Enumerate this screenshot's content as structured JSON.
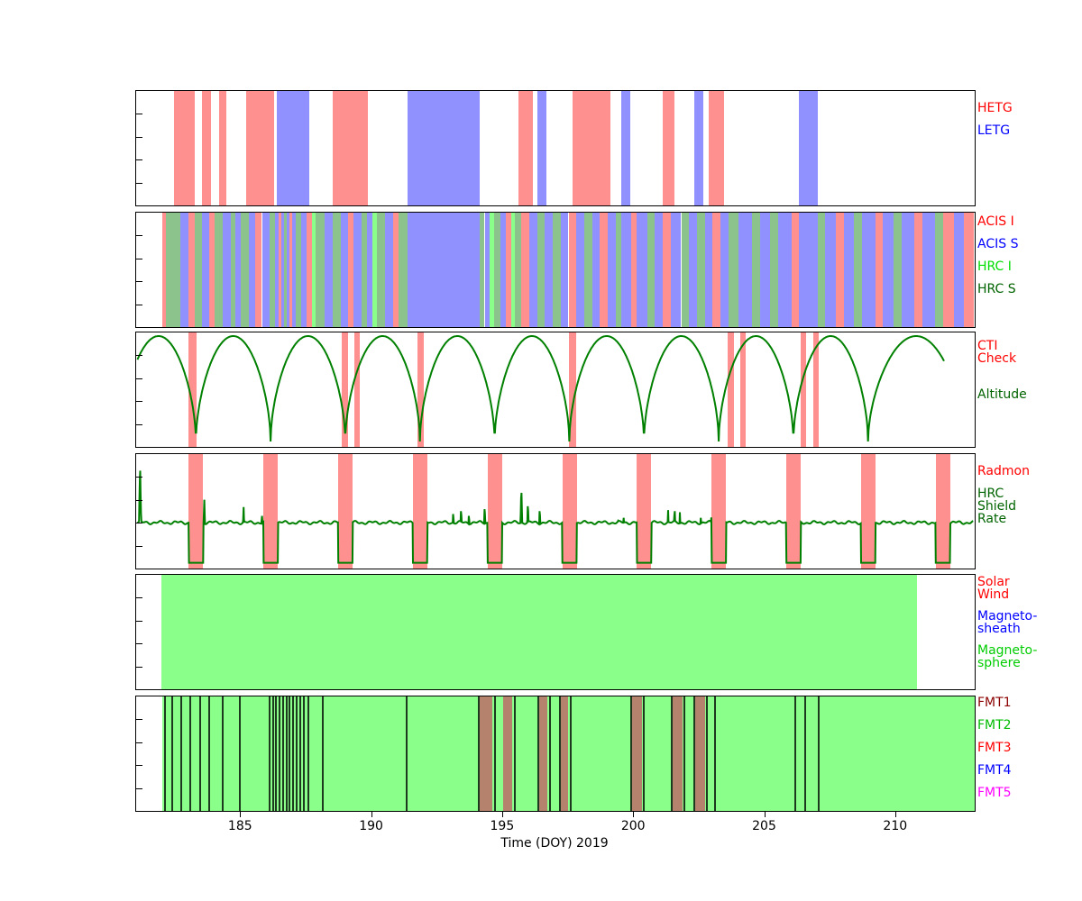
{
  "chart_data": {
    "type": "timeline",
    "title": "",
    "xaxis": {
      "label": "Time (DOY) 2019",
      "min": 181.0,
      "max": 213.0,
      "major_ticks": [
        185,
        190,
        195,
        200,
        205,
        210
      ]
    },
    "colors": {
      "salmon_band": "#ff9090",
      "blue_band": "#9090ff",
      "bright_green_band": "#8aff8a",
      "sage_band": "#8cc28c",
      "rosy_band": "#b5826e",
      "dark_line": "#1e3a1e",
      "curve_green": "#008000"
    },
    "panels": [
      {
        "id": "gratings",
        "kind": "intervals",
        "legend": [
          {
            "lines": [
              "HETG"
            ],
            "color": "#ff0000",
            "top": 13
          },
          {
            "lines": [
              "LETG"
            ],
            "color": "#0000ff",
            "top": 38
          }
        ],
        "bands": [
          {
            "series": "HETG",
            "color": "#ff9090",
            "intervals": [
              [
                182.45,
                183.25
              ],
              [
                183.5,
                183.85
              ],
              [
                184.15,
                184.45
              ],
              [
                185.2,
                186.25
              ],
              [
                188.5,
                189.85
              ],
              [
                195.6,
                196.15
              ],
              [
                197.65,
                199.1
              ],
              [
                201.1,
                201.55
              ],
              [
                202.85,
                203.45
              ]
            ]
          },
          {
            "series": "LETG",
            "color": "#9090ff",
            "intervals": [
              [
                186.35,
                187.6
              ],
              [
                191.35,
                194.1
              ],
              [
                196.3,
                196.65
              ],
              [
                199.5,
                199.85
              ],
              [
                202.3,
                202.65
              ],
              [
                206.3,
                207.0
              ]
            ]
          }
        ]
      },
      {
        "id": "instruments",
        "kind": "intervals",
        "legend": [
          {
            "lines": [
              "ACIS I"
            ],
            "color": "#ff0000",
            "top": 4
          },
          {
            "lines": [
              "ACIS S"
            ],
            "color": "#0000ff",
            "top": 29
          },
          {
            "lines": [
              "HRC I"
            ],
            "color": "#00dd00",
            "top": 54
          },
          {
            "lines": [
              "HRC S"
            ],
            "color": "#006400",
            "top": 79
          }
        ],
        "series_names": {
          "I": "ACIS I",
          "S": "ACIS S",
          "h": "HRC I",
          "H": "HRC S"
        },
        "series_colors": {
          "I": "#ff9090",
          "S": "#9090ff",
          "h": "#8aff8a",
          "H": "#8cc28c"
        },
        "segments": [
          [
            182.0,
            182.15,
            "I"
          ],
          [
            182.15,
            182.7,
            "H"
          ],
          [
            182.7,
            183.0,
            "S"
          ],
          [
            183.0,
            183.25,
            "I"
          ],
          [
            183.25,
            183.5,
            "H"
          ],
          [
            183.5,
            183.8,
            "S"
          ],
          [
            183.8,
            184.0,
            "I"
          ],
          [
            184.0,
            184.3,
            "H"
          ],
          [
            184.3,
            184.6,
            "S"
          ],
          [
            184.6,
            184.8,
            "H"
          ],
          [
            184.8,
            185.0,
            "S"
          ],
          [
            185.0,
            185.3,
            "H"
          ],
          [
            185.3,
            185.55,
            "S"
          ],
          [
            185.55,
            185.8,
            "I"
          ],
          [
            185.8,
            186.1,
            "S"
          ],
          [
            186.1,
            186.3,
            "H"
          ],
          [
            186.3,
            186.45,
            "S"
          ],
          [
            186.45,
            186.55,
            "I"
          ],
          [
            186.55,
            186.65,
            "S"
          ],
          [
            186.65,
            186.75,
            "H"
          ],
          [
            186.75,
            186.85,
            "S"
          ],
          [
            186.85,
            186.95,
            "I"
          ],
          [
            186.95,
            187.1,
            "S"
          ],
          [
            187.1,
            187.3,
            "H"
          ],
          [
            187.3,
            187.5,
            "S"
          ],
          [
            187.5,
            187.7,
            "I"
          ],
          [
            187.7,
            187.85,
            "h"
          ],
          [
            187.85,
            188.2,
            "H"
          ],
          [
            188.2,
            188.5,
            "S"
          ],
          [
            188.5,
            188.8,
            "H"
          ],
          [
            188.8,
            189.1,
            "S"
          ],
          [
            189.1,
            189.3,
            "I"
          ],
          [
            189.3,
            189.6,
            "S"
          ],
          [
            189.6,
            189.8,
            "H"
          ],
          [
            189.8,
            190.0,
            "S"
          ],
          [
            190.0,
            190.2,
            "h"
          ],
          [
            190.2,
            190.5,
            "H"
          ],
          [
            190.5,
            190.8,
            "S"
          ],
          [
            190.8,
            191.0,
            "I"
          ],
          [
            191.0,
            191.35,
            "H"
          ],
          [
            191.35,
            194.1,
            "S"
          ],
          [
            194.1,
            194.3,
            "H"
          ],
          [
            194.3,
            194.5,
            "S"
          ],
          [
            194.5,
            194.65,
            "h"
          ],
          [
            194.65,
            194.9,
            "H"
          ],
          [
            194.9,
            195.1,
            "S"
          ],
          [
            195.1,
            195.3,
            "I"
          ],
          [
            195.3,
            195.45,
            "h"
          ],
          [
            195.45,
            195.7,
            "H"
          ],
          [
            195.7,
            196.0,
            "I"
          ],
          [
            196.0,
            196.3,
            "S"
          ],
          [
            196.3,
            196.6,
            "H"
          ],
          [
            196.6,
            196.9,
            "S"
          ],
          [
            196.9,
            197.2,
            "H"
          ],
          [
            197.2,
            197.5,
            "S"
          ],
          [
            197.5,
            197.8,
            "I"
          ],
          [
            197.8,
            198.1,
            "S"
          ],
          [
            198.1,
            198.4,
            "H"
          ],
          [
            198.4,
            198.7,
            "S"
          ],
          [
            198.7,
            199.0,
            "I"
          ],
          [
            199.0,
            199.3,
            "S"
          ],
          [
            199.3,
            199.5,
            "H"
          ],
          [
            199.5,
            199.9,
            "S"
          ],
          [
            199.9,
            200.1,
            "I"
          ],
          [
            200.1,
            200.5,
            "S"
          ],
          [
            200.5,
            200.8,
            "H"
          ],
          [
            200.8,
            201.1,
            "S"
          ],
          [
            201.1,
            201.4,
            "I"
          ],
          [
            201.4,
            201.8,
            "S"
          ],
          [
            201.8,
            202.1,
            "H"
          ],
          [
            202.1,
            202.4,
            "S"
          ],
          [
            202.4,
            202.7,
            "H"
          ],
          [
            202.7,
            203.0,
            "S"
          ],
          [
            203.0,
            203.3,
            "I"
          ],
          [
            203.3,
            203.6,
            "S"
          ],
          [
            203.6,
            204.0,
            "H"
          ],
          [
            204.0,
            204.5,
            "S"
          ],
          [
            204.5,
            204.8,
            "H"
          ],
          [
            204.8,
            205.2,
            "S"
          ],
          [
            205.2,
            205.5,
            "H"
          ],
          [
            205.5,
            206.0,
            "S"
          ],
          [
            206.0,
            206.3,
            "I"
          ],
          [
            206.3,
            207.0,
            "S"
          ],
          [
            207.0,
            207.3,
            "H"
          ],
          [
            207.3,
            207.7,
            "S"
          ],
          [
            207.7,
            208.0,
            "I"
          ],
          [
            208.0,
            208.4,
            "S"
          ],
          [
            208.4,
            208.7,
            "H"
          ],
          [
            208.7,
            209.2,
            "S"
          ],
          [
            209.2,
            209.5,
            "I"
          ],
          [
            209.5,
            209.9,
            "S"
          ],
          [
            209.9,
            210.2,
            "H"
          ],
          [
            210.2,
            210.7,
            "S"
          ],
          [
            210.7,
            211.0,
            "I"
          ],
          [
            211.0,
            211.5,
            "S"
          ],
          [
            211.5,
            211.8,
            "H"
          ],
          [
            211.8,
            212.2,
            "I"
          ],
          [
            212.2,
            212.6,
            "S"
          ],
          [
            212.6,
            212.95,
            "I"
          ]
        ]
      },
      {
        "id": "orbit",
        "kind": "line+intervals",
        "legend": [
          {
            "lines": [
              "CTI",
              "Check"
            ],
            "color": "#ff0000",
            "top": 9
          },
          {
            "lines": [
              "Altitude"
            ],
            "color": "#006400",
            "top": 63
          }
        ],
        "cti_bands": {
          "series": "CTI Check",
          "color": "#ff9090",
          "intervals": [
            [
              183.0,
              183.3
            ],
            [
              188.85,
              189.09
            ],
            [
              189.33,
              189.54
            ],
            [
              191.74,
              191.98
            ],
            [
              197.51,
              197.78
            ],
            [
              203.56,
              203.8
            ],
            [
              204.04,
              204.25
            ],
            [
              206.37,
              206.58
            ],
            [
              206.85,
              207.06
            ]
          ]
        },
        "altitude": {
          "series": "Altitude",
          "color": "#008000",
          "start": 181.05,
          "end": 211.85,
          "perigees": [
            180.43,
            183.28,
            186.13,
            188.98,
            191.83,
            194.68,
            197.53,
            200.38,
            203.23,
            206.08,
            208.93,
            212.6
          ]
        }
      },
      {
        "id": "radmon",
        "kind": "line+intervals",
        "legend": [
          {
            "lines": [
              "Radmon"
            ],
            "color": "#ff0000",
            "top": 13
          },
          {
            "lines": [
              "HRC",
              "Shield",
              "Rate"
            ],
            "color": "#006400",
            "top": 38
          }
        ],
        "radmon_bands": {
          "series": "Radmon disabled",
          "color": "#ff9090",
          "intervals": [
            [
              183.01,
              183.56
            ],
            [
              185.86,
              186.41
            ],
            [
              188.71,
              189.26
            ],
            [
              191.56,
              192.11
            ],
            [
              194.41,
              194.96
            ],
            [
              197.26,
              197.81
            ],
            [
              200.11,
              200.66
            ],
            [
              202.96,
              203.51
            ],
            [
              205.81,
              206.36
            ],
            [
              208.66,
              209.21
            ],
            [
              211.51,
              212.06
            ]
          ]
        },
        "shield_rate": {
          "series": "HRC Shield Rate",
          "color": "#008000",
          "baseline": 0.4,
          "spikes": [
            [
              181.15,
              0.97
            ],
            [
              183.6,
              0.62
            ],
            [
              185.1,
              0.55
            ],
            [
              185.8,
              0.5
            ],
            [
              193.1,
              0.52
            ],
            [
              193.4,
              0.55
            ],
            [
              193.7,
              0.5
            ],
            [
              194.3,
              0.57
            ],
            [
              195.7,
              0.74
            ],
            [
              195.95,
              0.6
            ],
            [
              196.4,
              0.55
            ],
            [
              199.4,
              0.45
            ],
            [
              199.6,
              0.48
            ],
            [
              201.3,
              0.52
            ],
            [
              201.55,
              0.55
            ],
            [
              201.75,
              0.5
            ],
            [
              202.55,
              0.48
            ],
            [
              202.95,
              0.45
            ]
          ]
        }
      },
      {
        "id": "regions",
        "kind": "intervals",
        "legend": [
          {
            "lines": [
              "Solar",
              "Wind"
            ],
            "color": "#ff0000",
            "top": 2
          },
          {
            "lines": [
              "Magneto-",
              "sheath"
            ],
            "color": "#0000ff",
            "top": 40
          },
          {
            "lines": [
              "Magneto-",
              "sphere"
            ],
            "color": "#00cc00",
            "top": 78
          }
        ],
        "bands": [
          {
            "series": "Magnetosphere",
            "color": "#8aff8a",
            "intervals": [
              [
                181.95,
                210.8
              ]
            ]
          }
        ]
      },
      {
        "id": "fmt",
        "kind": "intervals",
        "legend": [
          {
            "lines": [
              "FMT1"
            ],
            "color": "#8b0000",
            "top": 1
          },
          {
            "lines": [
              "FMT2"
            ],
            "color": "#00bb00",
            "top": 26
          },
          {
            "lines": [
              "FMT3"
            ],
            "color": "#ff0000",
            "top": 51
          },
          {
            "lines": [
              "FMT4"
            ],
            "color": "#0000ff",
            "top": 76
          },
          {
            "lines": [
              "FMT5"
            ],
            "color": "#ff00ff",
            "top": 101
          }
        ],
        "bands": [
          {
            "series": "FMT2",
            "color": "#8aff8a",
            "intervals": [
              [
                182.0,
                213.0
              ]
            ]
          },
          {
            "series": "FMT1",
            "color": "#b5826e",
            "intervals": [
              [
                194.1,
                194.6
              ],
              [
                195.0,
                195.35
              ],
              [
                196.35,
                196.7
              ],
              [
                197.2,
                197.5
              ],
              [
                199.9,
                200.3
              ],
              [
                201.45,
                201.85
              ],
              [
                202.3,
                202.7
              ]
            ]
          }
        ],
        "lines": {
          "series": "format-change",
          "color": "#1e3a1e",
          "times": [
            182.05,
            182.33,
            182.68,
            183.02,
            183.4,
            183.74,
            184.26,
            184.91,
            186.05,
            186.18,
            186.31,
            186.44,
            186.57,
            186.7,
            186.83,
            186.96,
            187.09,
            187.22,
            187.38,
            187.55,
            188.1,
            191.3,
            194.05,
            194.65,
            195.4,
            196.3,
            196.75,
            197.15,
            197.55,
            199.85,
            200.35,
            201.4,
            201.9,
            202.25,
            202.75,
            203.05,
            206.1,
            206.5,
            207.0
          ]
        }
      }
    ]
  }
}
